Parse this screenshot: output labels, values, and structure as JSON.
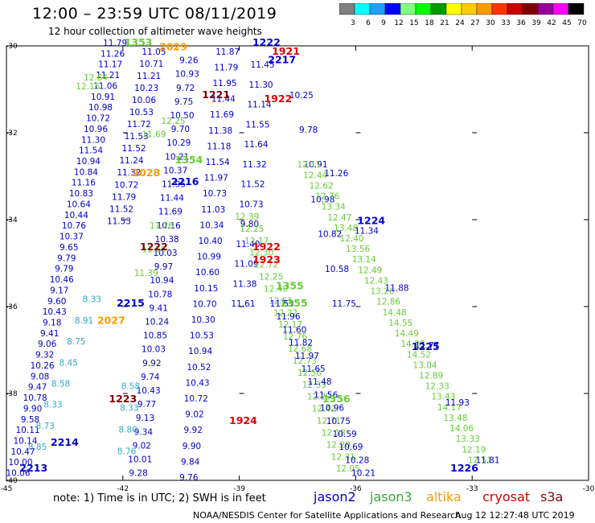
{
  "title": "12:00 – 23:59 UTC 08/11/2019",
  "subtitle": "12 hour collection of altimeter wave heights",
  "colorbar": {
    "labels": [
      "3",
      "6",
      "9",
      "12",
      "15",
      "18",
      "21",
      "24",
      "27",
      "30",
      "33",
      "36",
      "39",
      "42",
      "45",
      "70",
      "(ft)"
    ],
    "colors": [
      "#7f7f7f",
      "#00ffff",
      "#1fa0ff",
      "#0000ff",
      "#7fff7f",
      "#00ff00",
      "#009900",
      "#ffff00",
      "#ffcc00",
      "#ff9900",
      "#ff3300",
      "#cc0000",
      "#800000",
      "#990099",
      "#ff00ff",
      "#000000"
    ]
  },
  "axes": {
    "x_ticks": [
      "-45",
      "-42",
      "-39",
      "-36",
      "-33",
      "-30"
    ],
    "y_ticks": [
      "-30",
      "-32",
      "-34",
      "-36",
      "-38",
      "-40"
    ]
  },
  "legend": {
    "jason2": {
      "label": "jason2",
      "color": "#0000cc"
    },
    "jason3": {
      "label": "jason3",
      "color": "#33aa33"
    },
    "altika": {
      "label": "altika",
      "color": "#ff9900"
    },
    "cryosat": {
      "label": "cryosat",
      "color": "#cc0000"
    },
    "s3a": {
      "label": "s3a",
      "color": "#800000"
    }
  },
  "footer": {
    "note": "note: 1) Time is in UTC; 2) SWH is in feet",
    "credit": "NOAA/NESDIS Center for Satellite Applications and Research",
    "stamp": "Aug 12 12:27:48 UTC 2019"
  },
  "time_labels": [
    {
      "t": "1353",
      "c": "green",
      "lon": -41.6,
      "lat": -30.0
    },
    {
      "t": "2029",
      "c": "orange",
      "lon": -40.7,
      "lat": -30.1
    },
    {
      "t": "1222",
      "c": "blue",
      "lon": -38.3,
      "lat": -30.0
    },
    {
      "t": "1921",
      "c": "red",
      "lon": -37.8,
      "lat": -30.2
    },
    {
      "t": "2217",
      "c": "blue",
      "lon": -37.9,
      "lat": -30.4
    },
    {
      "t": "1221",
      "c": "darkred",
      "lon": -39.6,
      "lat": -31.2
    },
    {
      "t": "1922",
      "c": "red",
      "lon": -38.0,
      "lat": -31.3
    },
    {
      "t": "2216",
      "c": "blue",
      "lon": -40.4,
      "lat": -33.2
    },
    {
      "t": "1354",
      "c": "green",
      "lon": -40.3,
      "lat": -32.7
    },
    {
      "t": "2028",
      "c": "orange",
      "lon": -41.4,
      "lat": -33.0
    },
    {
      "t": "1224",
      "c": "blue",
      "lon": -35.6,
      "lat": -34.1
    },
    {
      "t": "1222",
      "c": "darkred",
      "lon": -41.2,
      "lat": -34.7
    },
    {
      "t": "1922",
      "c": "red",
      "lon": -38.3,
      "lat": -34.7
    },
    {
      "t": "1923",
      "c": "red",
      "lon": -38.3,
      "lat": -35.0
    },
    {
      "t": "1355",
      "c": "green",
      "lon": -37.7,
      "lat": -35.6
    },
    {
      "t": "1355",
      "c": "green",
      "lon": -37.6,
      "lat": -36.0
    },
    {
      "t": "2215",
      "c": "blue",
      "lon": -41.8,
      "lat": -36.0
    },
    {
      "t": "2027",
      "c": "orange",
      "lon": -42.3,
      "lat": -36.4
    },
    {
      "t": "1225",
      "c": "blue",
      "lon": -34.2,
      "lat": -37.0
    },
    {
      "t": "1223",
      "c": "darkred",
      "lon": -42.0,
      "lat": -38.2
    },
    {
      "t": "1356",
      "c": "green",
      "lon": -36.5,
      "lat": -38.2
    },
    {
      "t": "1924",
      "c": "red",
      "lon": -38.9,
      "lat": -38.7
    },
    {
      "t": "2214",
      "c": "blue",
      "lon": -43.5,
      "lat": -39.2
    },
    {
      "t": "2213",
      "c": "blue",
      "lon": -44.3,
      "lat": -39.8
    },
    {
      "t": "1226",
      "c": "blue",
      "lon": -33.2,
      "lat": -39.8
    }
  ],
  "tracks": [
    {
      "name": "jason2-descending-A",
      "c": "blue",
      "start": [
        -42.2,
        -30.0
      ],
      "end": [
        -44.7,
        -39.9
      ],
      "values": [
        "11.79",
        "11.26",
        "11.17",
        "11.21",
        "11.06",
        "10.91",
        "10.98",
        "10.72",
        "10.96",
        "11.30",
        "11.54",
        "10.94",
        "10.84",
        "11.16",
        "10.83",
        "10.64",
        "10.44",
        "10.76",
        "10.37",
        "9.65",
        "9.79",
        "9.79",
        "10.46",
        "9.17",
        "9.60",
        "10.43",
        "9.18",
        "9.41",
        "9.06",
        "9.32",
        "10.26",
        "9.08",
        "9.47",
        "10.78",
        "9.90",
        "9.58",
        "10.11",
        "10.14",
        "10.47",
        "10.00",
        "10.06"
      ]
    },
    {
      "name": "jason2-descending-B",
      "c": "blue",
      "start": [
        -41.2,
        -30.2
      ],
      "end": [
        -42.1,
        -34.1
      ],
      "values": [
        "11.05",
        "10.71",
        "11.21",
        "10.23",
        "10.06",
        "10.53",
        "11.72",
        "11.53",
        "11.52",
        "11.24",
        "11.32",
        "10.72",
        "11.79",
        "11.52",
        "11.53"
      ]
    },
    {
      "name": "jason2-descending-C",
      "c": "blue",
      "start": [
        -40.3,
        -30.4
      ],
      "end": [
        -41.6,
        -39.9
      ],
      "values": [
        "9.26",
        "10.93",
        "9.72",
        "9.75",
        "10.50",
        "9.70",
        "10.29",
        "10.21",
        "10.37",
        "11.95",
        "11.44",
        "11.69",
        "10.16",
        "10.38",
        "10.03",
        "9.97",
        "10.94",
        "10.78",
        "9.41",
        "10.24",
        "10.85",
        "10.03",
        "9.92",
        "9.74",
        "10.43",
        "9.77",
        "9.13",
        "9.34",
        "9.02",
        "10.01",
        "9.28"
      ]
    },
    {
      "name": "jason2-descending-D",
      "c": "blue",
      "start": [
        -39.3,
        -30.2
      ],
      "end": [
        -40.3,
        -40.0
      ],
      "values": [
        "11.87",
        "11.79",
        "11.95",
        "11.44",
        "11.69",
        "11.38",
        "11.18",
        "11.54",
        "11.97",
        "10.73",
        "11.03",
        "10.34",
        "10.40",
        "10.99",
        "10.60",
        "10.15",
        "10.70",
        "10.30",
        "10.53",
        "10.94",
        "10.52",
        "10.43",
        "10.72",
        "9.02",
        "9.92",
        "9.90",
        "9.84",
        "9.76"
      ]
    },
    {
      "name": "jason2-descending-E",
      "c": "blue",
      "start": [
        -38.4,
        -30.5
      ],
      "end": [
        -38.9,
        -36.0
      ],
      "values": [
        "11.45",
        "11.30",
        "11.14",
        "11.55",
        "11.64",
        "11.32",
        "11.52",
        "10.73",
        "9.80",
        "11.40",
        "11.09",
        "11.38",
        "11.61"
      ]
    },
    {
      "name": "jason2-descending-F",
      "c": "blue",
      "start": [
        -37.4,
        -31.2
      ],
      "end": [
        -36.3,
        -36.0
      ],
      "values": [
        "10.25",
        "9.78",
        "10.91",
        "10.98",
        "10.82",
        "10.58",
        "11.75"
      ]
    },
    {
      "name": "jason3-crossing",
      "c": "green",
      "start": [
        -37.2,
        -32.8
      ],
      "end": [
        -32.8,
        -39.6
      ],
      "values": [
        "12.11",
        "12.44",
        "12.62",
        "12.76",
        "13.34",
        "12.47",
        "13.48",
        "12.40",
        "13.56",
        "13.14",
        "12.49",
        "12.43",
        "13.26",
        "12.86",
        "14.48",
        "14.55",
        "14.49",
        "14.28",
        "14.52",
        "13.04",
        "12.89",
        "12.33",
        "13.43",
        "14.17",
        "13.48",
        "14.06",
        "13.33",
        "12.19",
        "12.51"
      ]
    },
    {
      "name": "jason2-crossing",
      "c": "blue",
      "start": [
        -36.5,
        -33.0
      ],
      "end": [
        -32.6,
        -39.6
      ],
      "values": [
        "11.26",
        "11.34",
        "11.88",
        "11.77",
        "11.93",
        "11.81"
      ]
    },
    {
      "name": "jason3-mid",
      "c": "green",
      "start": [
        -38.8,
        -34.0
      ],
      "end": [
        -36.2,
        -39.8
      ],
      "values": [
        "12.39",
        "12.25",
        "12.17",
        "12.30",
        "12.72",
        "12.25",
        "12.40",
        "12.51",
        "12.22",
        "12.17",
        "12.76",
        "12.68",
        "12.73",
        "12.56",
        "12.33",
        "12.29",
        "12.42",
        "12.71",
        "12.18",
        "12.20",
        "12.31",
        "12.05"
      ]
    },
    {
      "name": "jason2-lower",
      "c": "blue",
      "start": [
        -37.9,
        -36.0
      ],
      "end": [
        -35.8,
        -39.9
      ],
      "values": [
        "11.53",
        "11.96",
        "11.60",
        "11.82",
        "11.97",
        "11.65",
        "11.48",
        "11.56",
        "10.96",
        "10.75",
        "10.59",
        "10.69",
        "10.28",
        "10.21"
      ]
    },
    {
      "name": "altika-west",
      "c": "cyan",
      "start": [
        -42.8,
        -35.9
      ],
      "end": [
        -44.2,
        -39.3
      ],
      "values": [
        "8.33",
        "8.91",
        "8.75",
        "8.45",
        "8.58",
        "8.33",
        "8.73",
        "8.85"
      ]
    },
    {
      "name": "altika-west2",
      "c": "cyan",
      "start": [
        -41.8,
        -37.9
      ],
      "end": [
        -41.9,
        -39.4
      ],
      "values": [
        "8.58",
        "8.33",
        "8.80",
        "8.76"
      ]
    },
    {
      "name": "jason3-west",
      "c": "green",
      "start": [
        -42.7,
        -30.8
      ],
      "end": [
        -42.9,
        -31.0
      ],
      "values": [
        "12.84",
        "12.15"
      ]
    },
    {
      "name": "jason3-west-b",
      "c": "green",
      "start": [
        -41.0,
        -34.2
      ],
      "end": [
        -41.4,
        -35.3
      ],
      "values": [
        "11.26",
        "11.16",
        "11.39"
      ]
    },
    {
      "name": "jason3-north",
      "c": "green",
      "start": [
        -40.7,
        -31.8
      ],
      "end": [
        -41.2,
        -32.1
      ],
      "values": [
        "12.25",
        "11.69"
      ]
    }
  ]
}
